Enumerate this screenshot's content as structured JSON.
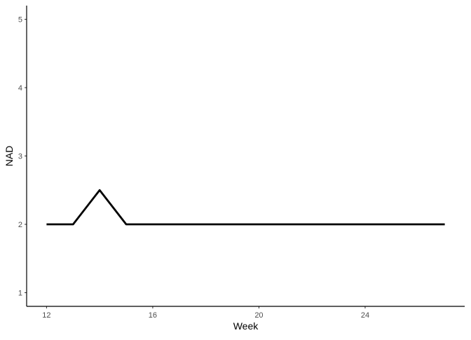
{
  "chart_data": {
    "type": "line",
    "title": "",
    "xlabel": "Week",
    "ylabel": "NAD",
    "x": [
      12,
      13,
      14,
      15,
      16,
      17,
      18,
      19,
      20,
      21,
      22,
      23,
      24,
      25,
      26,
      27
    ],
    "series": [
      {
        "values": [
          2,
          2,
          2.5,
          2,
          2,
          2,
          2,
          2,
          2,
          2,
          2,
          2,
          2,
          2,
          2,
          2
        ],
        "color": "#000000"
      }
    ],
    "xlim": [
      11.25,
      27.75
    ],
    "ylim": [
      0.8,
      5.2
    ],
    "xticks": [
      12,
      16,
      20,
      24
    ],
    "yticks": [
      1,
      2,
      3,
      4,
      5
    ],
    "grid": false,
    "legend": "none"
  }
}
